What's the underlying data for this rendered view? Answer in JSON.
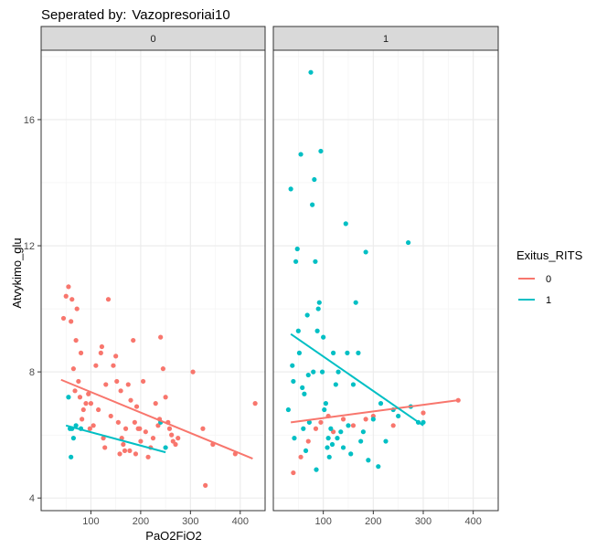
{
  "chart_data": {
    "type": "scatter",
    "title_prefix": "Seperated by:",
    "title_variable": "Vazopresoriai10",
    "xlabel": "PaO2FiO2",
    "ylabel": "Atvykimo_glu",
    "xlim": [
      0,
      450
    ],
    "ylim": [
      3.6,
      18.2
    ],
    "xticks": [
      100,
      200,
      300,
      400
    ],
    "yticks": [
      4,
      8,
      12,
      16
    ],
    "grid": true,
    "legend": {
      "title": "Exitus_RITS",
      "placement": "right",
      "entries": [
        {
          "label": "0",
          "color": "#F8766D"
        },
        {
          "label": "1",
          "color": "#00BFC4"
        }
      ]
    },
    "panels": [
      {
        "strip": "0",
        "series": [
          {
            "name": "0",
            "color": "#F8766D",
            "fit": {
              "x": [
                40,
                425
              ],
              "y": [
                7.75,
                5.25
              ]
            },
            "points": [
              [
                45,
                9.7
              ],
              [
                50,
                10.4
              ],
              [
                55,
                10.7
              ],
              [
                60,
                9.6
              ],
              [
                62,
                10.3
              ],
              [
                65,
                8.1
              ],
              [
                68,
                7.4
              ],
              [
                70,
                9.0
              ],
              [
                72,
                10.0
              ],
              [
                75,
                7.7
              ],
              [
                78,
                7.2
              ],
              [
                80,
                8.6
              ],
              [
                82,
                6.5
              ],
              [
                85,
                6.8
              ],
              [
                90,
                7.0
              ],
              [
                95,
                7.3
              ],
              [
                98,
                6.2
              ],
              [
                100,
                7.0
              ],
              [
                105,
                6.3
              ],
              [
                110,
                8.2
              ],
              [
                115,
                6.8
              ],
              [
                120,
                8.6
              ],
              [
                122,
                8.8
              ],
              [
                125,
                5.9
              ],
              [
                128,
                5.6
              ],
              [
                130,
                7.6
              ],
              [
                135,
                10.3
              ],
              [
                140,
                6.6
              ],
              [
                145,
                8.2
              ],
              [
                150,
                8.5
              ],
              [
                152,
                7.7
              ],
              [
                155,
                6.4
              ],
              [
                158,
                5.4
              ],
              [
                160,
                7.4
              ],
              [
                162,
                5.9
              ],
              [
                165,
                5.7
              ],
              [
                168,
                5.5
              ],
              [
                170,
                6.2
              ],
              [
                175,
                7.6
              ],
              [
                178,
                5.5
              ],
              [
                180,
                7.1
              ],
              [
                185,
                9.0
              ],
              [
                188,
                6.4
              ],
              [
                190,
                5.4
              ],
              [
                192,
                6.9
              ],
              [
                195,
                6.2
              ],
              [
                198,
                6.2
              ],
              [
                200,
                5.8
              ],
              [
                205,
                7.7
              ],
              [
                210,
                6.1
              ],
              [
                215,
                5.3
              ],
              [
                220,
                5.6
              ],
              [
                225,
                5.9
              ],
              [
                230,
                7.0
              ],
              [
                235,
                6.3
              ],
              [
                238,
                6.5
              ],
              [
                240,
                9.1
              ],
              [
                245,
                8.1
              ],
              [
                250,
                7.2
              ],
              [
                255,
                6.4
              ],
              [
                258,
                6.2
              ],
              [
                262,
                6.0
              ],
              [
                265,
                5.8
              ],
              [
                270,
                5.7
              ],
              [
                275,
                5.9
              ],
              [
                305,
                8.0
              ],
              [
                325,
                6.2
              ],
              [
                330,
                4.4
              ],
              [
                345,
                5.7
              ],
              [
                390,
                5.4
              ],
              [
                430,
                7.0
              ]
            ]
          },
          {
            "name": "1",
            "color": "#00BFC4",
            "fit": {
              "x": [
                50,
                250
              ],
              "y": [
                6.3,
                5.45
              ]
            },
            "points": [
              [
                55,
                7.2
              ],
              [
                58,
                6.2
              ],
              [
                60,
                5.3
              ],
              [
                62,
                6.2
              ],
              [
                65,
                5.9
              ],
              [
                70,
                6.3
              ],
              [
                80,
                6.2
              ],
              [
                240,
                6.4
              ],
              [
                250,
                5.6
              ]
            ]
          }
        ]
      },
      {
        "strip": "1",
        "series": [
          {
            "name": "0",
            "color": "#F8766D",
            "fit": {
              "x": [
                35,
                370
              ],
              "y": [
                6.4,
                7.1
              ]
            },
            "points": [
              [
                40,
                4.8
              ],
              [
                55,
                5.3
              ],
              [
                70,
                5.8
              ],
              [
                85,
                6.2
              ],
              [
                95,
                6.4
              ],
              [
                110,
                6.6
              ],
              [
                120,
                6.1
              ],
              [
                140,
                6.5
              ],
              [
                160,
                6.3
              ],
              [
                185,
                6.5
              ],
              [
                200,
                6.6
              ],
              [
                240,
                6.3
              ],
              [
                300,
                6.7
              ],
              [
                370,
                7.1
              ]
            ]
          },
          {
            "name": "1",
            "color": "#00BFC4",
            "fit": {
              "x": [
                35,
                300
              ],
              "y": [
                9.2,
                6.3
              ]
            },
            "points": [
              [
                30,
                6.8
              ],
              [
                35,
                13.8
              ],
              [
                38,
                8.2
              ],
              [
                40,
                7.7
              ],
              [
                42,
                5.9
              ],
              [
                45,
                11.5
              ],
              [
                48,
                11.9
              ],
              [
                50,
                9.3
              ],
              [
                52,
                8.6
              ],
              [
                55,
                14.9
              ],
              [
                58,
                7.5
              ],
              [
                60,
                6.2
              ],
              [
                62,
                7.3
              ],
              [
                65,
                5.5
              ],
              [
                68,
                9.8
              ],
              [
                70,
                7.9
              ],
              [
                72,
                6.4
              ],
              [
                75,
                17.5
              ],
              [
                78,
                13.3
              ],
              [
                80,
                8.0
              ],
              [
                82,
                14.1
              ],
              [
                84,
                11.5
              ],
              [
                86,
                4.9
              ],
              [
                88,
                9.3
              ],
              [
                90,
                10.0
              ],
              [
                92,
                10.2
              ],
              [
                95,
                15.0
              ],
              [
                98,
                8.0
              ],
              [
                100,
                9.1
              ],
              [
                102,
                6.8
              ],
              [
                105,
                7.0
              ],
              [
                108,
                5.6
              ],
              [
                110,
                5.9
              ],
              [
                112,
                5.3
              ],
              [
                115,
                6.2
              ],
              [
                118,
                5.7
              ],
              [
                120,
                8.6
              ],
              [
                125,
                7.6
              ],
              [
                128,
                5.9
              ],
              [
                130,
                8.0
              ],
              [
                135,
                6.1
              ],
              [
                140,
                5.6
              ],
              [
                145,
                12.7
              ],
              [
                148,
                8.6
              ],
              [
                150,
                6.3
              ],
              [
                155,
                5.4
              ],
              [
                160,
                7.6
              ],
              [
                165,
                10.2
              ],
              [
                170,
                8.6
              ],
              [
                175,
                5.8
              ],
              [
                180,
                6.1
              ],
              [
                185,
                11.8
              ],
              [
                190,
                5.2
              ],
              [
                200,
                6.5
              ],
              [
                210,
                5.0
              ],
              [
                215,
                7.0
              ],
              [
                225,
                5.8
              ],
              [
                240,
                6.8
              ],
              [
                250,
                6.6
              ],
              [
                270,
                12.1
              ],
              [
                275,
                6.9
              ],
              [
                290,
                6.4
              ],
              [
                300,
                6.4
              ]
            ]
          }
        ]
      }
    ]
  }
}
